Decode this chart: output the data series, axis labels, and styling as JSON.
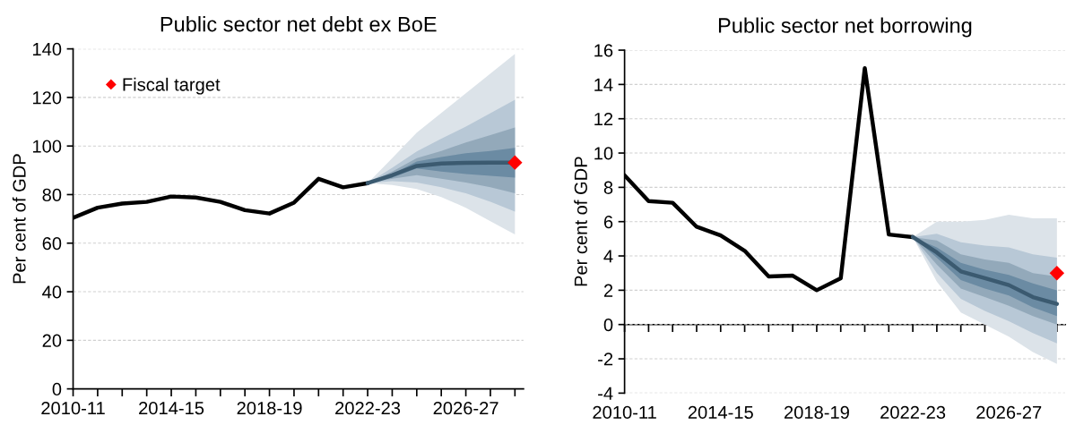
{
  "chart_data": [
    {
      "type": "line",
      "title": "Public sector net debt ex BoE",
      "ylabel": "Per cent of GDP",
      "categories": [
        "2010-11",
        null,
        null,
        null,
        "2014-15",
        null,
        null,
        null,
        "2018-19",
        null,
        null,
        null,
        "2022-23",
        null,
        null,
        null,
        "2026-27",
        null,
        null
      ],
      "ylim": [
        0,
        140
      ],
      "yticks": [
        0,
        20,
        40,
        60,
        80,
        100,
        120,
        140
      ],
      "grid": "y",
      "legend": "top left",
      "series": [
        {
          "color": "#dce3e9",
          "values": [
            null,
            null,
            null,
            null,
            null,
            null,
            null,
            null,
            null,
            null,
            null,
            null,
            null,
            null,
            null,
            null,
            null,
            null,
            null
          ],
          "lower": [
            null,
            null,
            null,
            null,
            null,
            null,
            null,
            null,
            null,
            null,
            null,
            null,
            84.7,
            84,
            82.3,
            79,
            74.6,
            69,
            63.6
          ],
          "upper": [
            null,
            null,
            null,
            null,
            null,
            null,
            null,
            null,
            null,
            null,
            null,
            null,
            84.7,
            95,
            105.5,
            113.6,
            121.7,
            129.8,
            137.9
          ]
        },
        {
          "color": "#b8c8d6",
          "values": [
            null,
            null,
            null,
            null,
            null,
            null,
            null,
            null,
            null,
            null,
            null,
            null,
            null,
            null,
            null,
            null,
            null,
            null,
            null
          ],
          "lower": [
            null,
            null,
            null,
            null,
            null,
            null,
            null,
            null,
            null,
            null,
            null,
            null,
            84.7,
            85.5,
            85,
            83,
            80.5,
            77,
            73
          ],
          "upper": [
            null,
            null,
            null,
            null,
            null,
            null,
            null,
            null,
            null,
            null,
            null,
            null,
            84.7,
            91,
            97.8,
            103,
            108,
            113.5,
            119
          ]
        },
        {
          "color": "#93a9ba",
          "values": [
            null,
            null,
            null,
            null,
            null,
            null,
            null,
            null,
            null,
            null,
            null,
            null,
            null,
            null,
            null,
            null,
            null,
            null,
            null
          ],
          "lower": [
            null,
            null,
            null,
            null,
            null,
            null,
            null,
            null,
            null,
            null,
            null,
            null,
            84.7,
            86.5,
            88,
            86.5,
            85,
            83,
            80.5
          ],
          "upper": [
            null,
            null,
            null,
            null,
            null,
            null,
            null,
            null,
            null,
            null,
            null,
            null,
            84.7,
            89.5,
            95,
            98,
            101.5,
            104.5,
            107.6
          ]
        },
        {
          "color": "#6b8ba3",
          "values": [
            null,
            null,
            null,
            null,
            null,
            null,
            null,
            null,
            null,
            null,
            null,
            null,
            null,
            null,
            null,
            null,
            null,
            null,
            null
          ],
          "lower": [
            null,
            null,
            null,
            null,
            null,
            null,
            null,
            null,
            null,
            null,
            null,
            null,
            84.7,
            87,
            90.8,
            89.5,
            88.5,
            87.7,
            87
          ],
          "upper": [
            null,
            null,
            null,
            null,
            null,
            null,
            null,
            null,
            null,
            null,
            null,
            null,
            84.7,
            88.5,
            93.6,
            95.5,
            97,
            98,
            99.2
          ]
        },
        {
          "color": "#000000",
          "values": [
            70.4,
            74.6,
            76.3,
            77,
            79.2,
            78.8,
            77,
            73.6,
            72.2,
            76.7,
            86.5,
            83,
            84.7,
            null,
            null,
            null,
            null,
            null,
            null
          ]
        },
        {
          "color": "#3b5a70",
          "values": [
            null,
            null,
            null,
            null,
            null,
            null,
            null,
            null,
            null,
            null,
            null,
            null,
            84.7,
            88,
            91.8,
            92.8,
            93.1,
            93.2,
            93.2
          ]
        },
        {
          "type": "scatter",
          "name": "Fiscal target",
          "color": "#ff0000",
          "marker": "diamond",
          "values": [
            null,
            null,
            null,
            null,
            null,
            null,
            null,
            null,
            null,
            null,
            null,
            null,
            null,
            null,
            null,
            null,
            null,
            null,
            93.2
          ]
        }
      ]
    },
    {
      "type": "line",
      "title": "Public sector net borrowing",
      "ylabel": "Per cent of GDP",
      "categories": [
        "2010-11",
        null,
        null,
        null,
        "2014-15",
        null,
        null,
        null,
        "2018-19",
        null,
        null,
        null,
        "2022-23",
        null,
        null,
        null,
        "2026-27",
        null,
        null
      ],
      "ylim": [
        -4,
        16
      ],
      "yticks": [
        -4,
        -2,
        0,
        2,
        4,
        6,
        8,
        10,
        12,
        14,
        16
      ],
      "grid": "y",
      "series": [
        {
          "color": "#dce3e9",
          "values": [
            null,
            null,
            null,
            null,
            null,
            null,
            null,
            null,
            null,
            null,
            null,
            null,
            null,
            null,
            null,
            null,
            null,
            null,
            null
          ],
          "lower": [
            null,
            null,
            null,
            null,
            null,
            null,
            null,
            null,
            null,
            null,
            null,
            null,
            5.1,
            2.5,
            0.7,
            0.0,
            -0.7,
            -1.6,
            -2.3
          ],
          "upper": [
            null,
            null,
            null,
            null,
            null,
            null,
            null,
            null,
            null,
            null,
            null,
            null,
            5.1,
            6.0,
            6.0,
            6.1,
            6.4,
            6.2,
            6.2
          ]
        },
        {
          "color": "#b8c8d6",
          "values": [
            null,
            null,
            null,
            null,
            null,
            null,
            null,
            null,
            null,
            null,
            null,
            null,
            null,
            null,
            null,
            null,
            null,
            null,
            null
          ],
          "lower": [
            null,
            null,
            null,
            null,
            null,
            null,
            null,
            null,
            null,
            null,
            null,
            null,
            5.1,
            3.0,
            1.5,
            0.8,
            0.2,
            -0.5,
            -1.1
          ],
          "upper": [
            null,
            null,
            null,
            null,
            null,
            null,
            null,
            null,
            null,
            null,
            null,
            null,
            5.1,
            5.3,
            4.8,
            4.6,
            4.5,
            4.1,
            3.9
          ]
        },
        {
          "color": "#93a9ba",
          "values": [
            null,
            null,
            null,
            null,
            null,
            null,
            null,
            null,
            null,
            null,
            null,
            null,
            null,
            null,
            null,
            null,
            null,
            null,
            null
          ],
          "lower": [
            null,
            null,
            null,
            null,
            null,
            null,
            null,
            null,
            null,
            null,
            null,
            null,
            5.1,
            3.5,
            2.1,
            1.6,
            1.1,
            0.5,
            0.0
          ],
          "upper": [
            null,
            null,
            null,
            null,
            null,
            null,
            null,
            null,
            null,
            null,
            null,
            null,
            5.1,
            4.9,
            4.1,
            3.8,
            3.6,
            3.0,
            2.8
          ]
        },
        {
          "color": "#6b8ba3",
          "values": [
            null,
            null,
            null,
            null,
            null,
            null,
            null,
            null,
            null,
            null,
            null,
            null,
            null,
            null,
            null,
            null,
            null,
            null,
            null
          ],
          "lower": [
            null,
            null,
            null,
            null,
            null,
            null,
            null,
            null,
            null,
            null,
            null,
            null,
            5.1,
            3.9,
            2.6,
            2.1,
            1.7,
            1.0,
            0.5
          ],
          "upper": [
            null,
            null,
            null,
            null,
            null,
            null,
            null,
            null,
            null,
            null,
            null,
            null,
            5.1,
            4.5,
            3.6,
            3.2,
            2.9,
            2.4,
            2.0
          ]
        },
        {
          "color": "#000000",
          "values": [
            8.7,
            7.2,
            7.1,
            5.7,
            5.2,
            4.3,
            2.8,
            2.85,
            2.0,
            2.7,
            14.95,
            5.25,
            5.1,
            null,
            null,
            null,
            null,
            null,
            null
          ]
        },
        {
          "color": "#3b5a70",
          "values": [
            null,
            null,
            null,
            null,
            null,
            null,
            null,
            null,
            null,
            null,
            null,
            null,
            5.1,
            4.2,
            3.1,
            2.7,
            2.3,
            1.6,
            1.2
          ]
        },
        {
          "type": "scatter",
          "color": "#ff0000",
          "marker": "diamond",
          "values": [
            null,
            null,
            null,
            null,
            null,
            null,
            null,
            null,
            null,
            null,
            null,
            null,
            null,
            null,
            null,
            null,
            null,
            null,
            3.0
          ]
        }
      ]
    }
  ]
}
